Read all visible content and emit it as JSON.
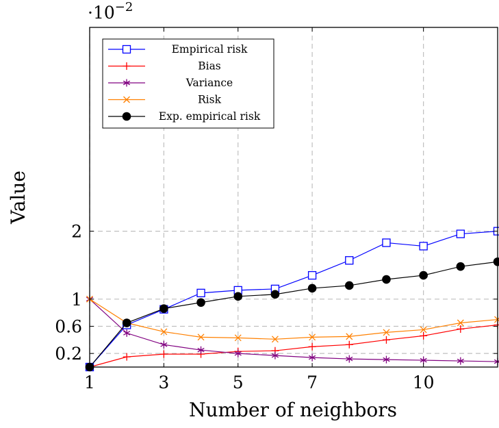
{
  "chart_data": {
    "type": "line",
    "xlabel": "Number of neighbors",
    "ylabel": "Value",
    "y_multiplier_base": "·10",
    "y_multiplier_exp": "−2",
    "xlim": [
      1,
      12
    ],
    "ylim": [
      0,
      5
    ],
    "xticks": [
      1,
      3,
      5,
      7,
      10
    ],
    "yticks": [
      0.2,
      0.6,
      1,
      2
    ],
    "grid": true,
    "legend_position": "top-left",
    "x": [
      1,
      2,
      3,
      4,
      5,
      6,
      7,
      8,
      9,
      10,
      11,
      12
    ],
    "series": [
      {
        "name": "Empirical risk",
        "color": "#0000ff",
        "marker": "square-open",
        "values": [
          0.0,
          0.62,
          0.85,
          1.09,
          1.13,
          1.15,
          1.35,
          1.57,
          1.83,
          1.78,
          1.96,
          2.0
        ]
      },
      {
        "name": "Bias",
        "color": "#ff0000",
        "marker": "plus",
        "values": [
          0.0,
          0.15,
          0.19,
          0.19,
          0.23,
          0.24,
          0.3,
          0.33,
          0.4,
          0.46,
          0.56,
          0.62
        ]
      },
      {
        "name": "Variance",
        "color": "#800080",
        "marker": "star",
        "values": [
          1.0,
          0.5,
          0.33,
          0.25,
          0.2,
          0.17,
          0.14,
          0.12,
          0.11,
          0.1,
          0.09,
          0.08
        ]
      },
      {
        "name": "Risk",
        "color": "#ff8000",
        "marker": "x",
        "values": [
          1.0,
          0.65,
          0.52,
          0.44,
          0.43,
          0.41,
          0.44,
          0.45,
          0.51,
          0.55,
          0.65,
          0.7
        ]
      },
      {
        "name": "Exp. empirical risk",
        "color": "#000000",
        "marker": "circle-filled",
        "values": [
          0.0,
          0.65,
          0.86,
          0.95,
          1.04,
          1.07,
          1.16,
          1.2,
          1.29,
          1.35,
          1.48,
          1.55
        ]
      }
    ]
  }
}
